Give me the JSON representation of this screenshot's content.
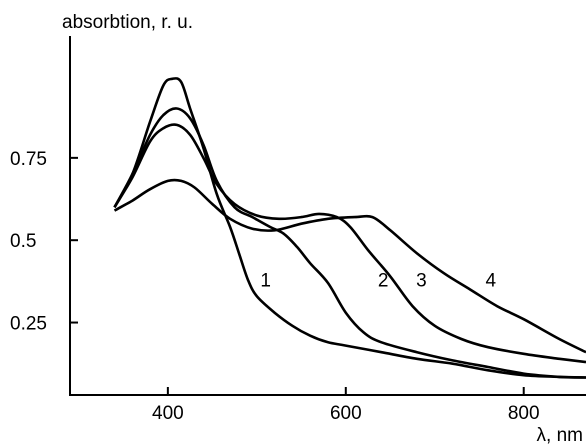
{
  "chart_data": {
    "type": "line",
    "ylabel": "absorbtion, r. u.",
    "xlabel": "λ, nm",
    "xlim": [
      290,
      870
    ],
    "ylim": [
      0.03,
      1.12
    ],
    "x_ticks": [
      {
        "value": 400,
        "label": "400"
      },
      {
        "value": 600,
        "label": "600"
      },
      {
        "value": 800,
        "label": "800"
      }
    ],
    "y_ticks": [
      {
        "value": 0.25,
        "label": "0.25"
      },
      {
        "value": 0.5,
        "label": "0.5"
      },
      {
        "value": 0.75,
        "label": "0.75"
      }
    ],
    "grid": false,
    "legend": "none",
    "line_color": "#000000",
    "series": [
      {
        "name": "1",
        "label_at": [
          510,
          0.36
        ],
        "points": [
          [
            340,
            0.6
          ],
          [
            360,
            0.7
          ],
          [
            380,
            0.86
          ],
          [
            395,
            0.97
          ],
          [
            405,
            0.99
          ],
          [
            415,
            0.98
          ],
          [
            425,
            0.9
          ],
          [
            440,
            0.78
          ],
          [
            455,
            0.64
          ],
          [
            470,
            0.54
          ],
          [
            480,
            0.46
          ],
          [
            490,
            0.38
          ],
          [
            500,
            0.33
          ],
          [
            520,
            0.28
          ],
          [
            540,
            0.24
          ],
          [
            560,
            0.21
          ],
          [
            580,
            0.19
          ],
          [
            600,
            0.18
          ],
          [
            640,
            0.16
          ],
          [
            680,
            0.14
          ],
          [
            720,
            0.125
          ],
          [
            760,
            0.105
          ],
          [
            800,
            0.09
          ],
          [
            840,
            0.085
          ],
          [
            870,
            0.083
          ]
        ]
      },
      {
        "name": "2",
        "label_at": [
          642,
          0.36
        ],
        "points": [
          [
            340,
            0.6
          ],
          [
            360,
            0.7
          ],
          [
            380,
            0.82
          ],
          [
            395,
            0.88
          ],
          [
            410,
            0.9
          ],
          [
            425,
            0.87
          ],
          [
            440,
            0.79
          ],
          [
            455,
            0.68
          ],
          [
            475,
            0.6
          ],
          [
            495,
            0.57
          ],
          [
            515,
            0.54
          ],
          [
            530,
            0.52
          ],
          [
            545,
            0.48
          ],
          [
            560,
            0.43
          ],
          [
            580,
            0.37
          ],
          [
            600,
            0.28
          ],
          [
            620,
            0.22
          ],
          [
            640,
            0.19
          ],
          [
            680,
            0.16
          ],
          [
            720,
            0.135
          ],
          [
            760,
            0.115
          ],
          [
            800,
            0.095
          ],
          [
            840,
            0.085
          ],
          [
            870,
            0.083
          ]
        ]
      },
      {
        "name": "3",
        "label_at": [
          685,
          0.36
        ],
        "points": [
          [
            340,
            0.6
          ],
          [
            360,
            0.69
          ],
          [
            380,
            0.8
          ],
          [
            395,
            0.84
          ],
          [
            410,
            0.85
          ],
          [
            425,
            0.82
          ],
          [
            440,
            0.75
          ],
          [
            455,
            0.67
          ],
          [
            475,
            0.61
          ],
          [
            500,
            0.575
          ],
          [
            525,
            0.565
          ],
          [
            550,
            0.57
          ],
          [
            570,
            0.58
          ],
          [
            590,
            0.57
          ],
          [
            605,
            0.54
          ],
          [
            625,
            0.47
          ],
          [
            650,
            0.39
          ],
          [
            675,
            0.3
          ],
          [
            700,
            0.24
          ],
          [
            730,
            0.2
          ],
          [
            760,
            0.175
          ],
          [
            800,
            0.155
          ],
          [
            840,
            0.14
          ],
          [
            870,
            0.13
          ]
        ]
      },
      {
        "name": "4",
        "label_at": [
          763,
          0.36
        ],
        "points": [
          [
            340,
            0.59
          ],
          [
            360,
            0.62
          ],
          [
            380,
            0.655
          ],
          [
            400,
            0.68
          ],
          [
            415,
            0.68
          ],
          [
            430,
            0.66
          ],
          [
            450,
            0.61
          ],
          [
            470,
            0.565
          ],
          [
            495,
            0.535
          ],
          [
            520,
            0.53
          ],
          [
            550,
            0.55
          ],
          [
            580,
            0.565
          ],
          [
            610,
            0.57
          ],
          [
            630,
            0.57
          ],
          [
            650,
            0.53
          ],
          [
            680,
            0.46
          ],
          [
            710,
            0.4
          ],
          [
            740,
            0.35
          ],
          [
            770,
            0.3
          ],
          [
            800,
            0.26
          ],
          [
            840,
            0.2
          ],
          [
            870,
            0.16
          ]
        ]
      }
    ]
  }
}
